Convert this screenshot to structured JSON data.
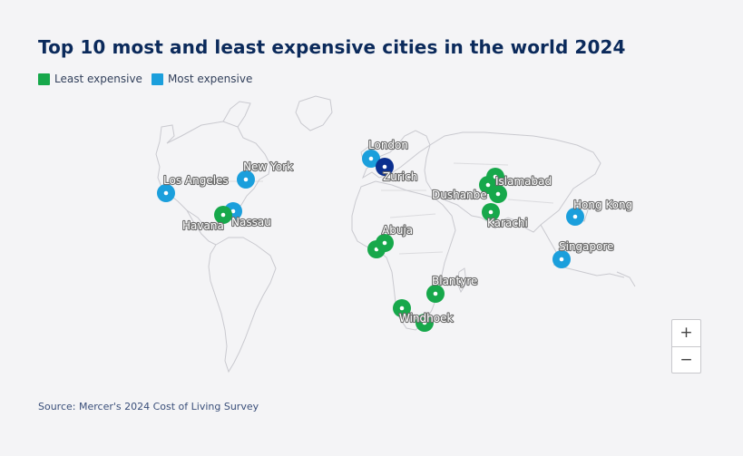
{
  "title": "Top 10 most and least expensive cities in the world 2024",
  "legend": {
    "least": {
      "label": "Least expensive",
      "color": "#17a84b"
    },
    "most": {
      "label": "Most expensive",
      "color": "#1b9fdc"
    }
  },
  "highlight_color": "#0b2f8f",
  "cities": [
    {
      "name": "London",
      "group": "most"
    },
    {
      "name": "Zurich",
      "group": "most"
    },
    {
      "name": "New York",
      "group": "most"
    },
    {
      "name": "Los Angeles",
      "group": "most"
    },
    {
      "name": "Nassau",
      "group": "most"
    },
    {
      "name": "Hong Kong",
      "group": "most"
    },
    {
      "name": "Singapore",
      "group": "most"
    },
    {
      "name": "Havana",
      "group": "least"
    },
    {
      "name": "Abuja",
      "group": "least"
    },
    {
      "name": "Islamabad",
      "group": "least"
    },
    {
      "name": "Dushanbe",
      "group": "least"
    },
    {
      "name": "Karachi",
      "group": "least"
    },
    {
      "name": "Blantyre",
      "group": "least"
    },
    {
      "name": "Windhoek",
      "group": "least"
    }
  ],
  "zoom": {
    "in": "+",
    "out": "−"
  },
  "source": "Source: Mercer's 2024 Cost of Living Survey"
}
